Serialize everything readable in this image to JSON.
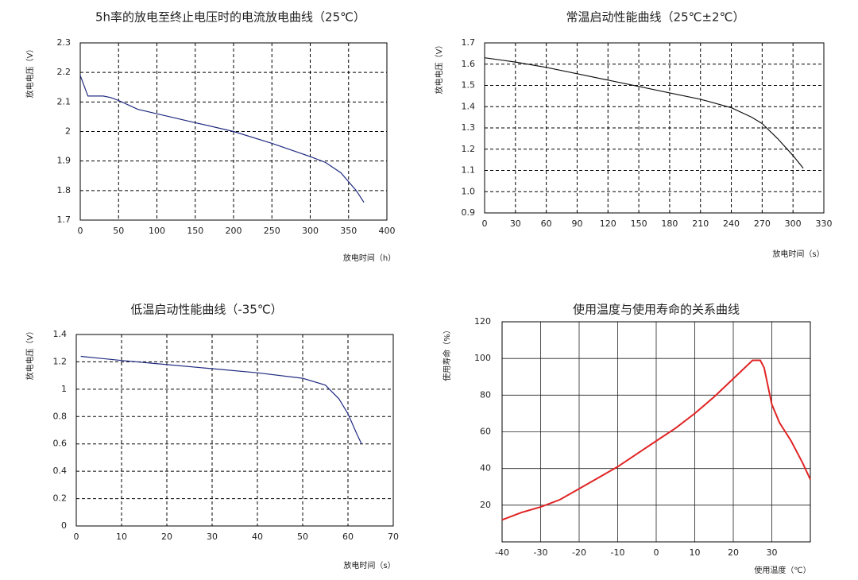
{
  "chart_data": [
    {
      "type": "line",
      "title": "5h率的放电至终止电压时的电流放电曲线（25℃）",
      "x_label": "放电时间（h）",
      "y_label": "放电电压（V）",
      "x": [
        0,
        10,
        20,
        30,
        40,
        50,
        75,
        100,
        150,
        200,
        250,
        300,
        320,
        340,
        360,
        370
      ],
      "values": [
        2.19,
        2.12,
        2.12,
        2.12,
        2.115,
        2.105,
        2.075,
        2.06,
        2.03,
        2.0,
        1.96,
        1.915,
        1.895,
        1.86,
        1.8,
        1.76
      ],
      "color": "#1f2a80",
      "xlim": [
        0,
        400
      ],
      "xticks": [
        0,
        50,
        100,
        150,
        200,
        250,
        300,
        350,
        400
      ],
      "ylim": [
        1.7,
        2.3
      ],
      "yticks": [
        1.7,
        1.8,
        1.9,
        2,
        2.1,
        2.2,
        2.3
      ],
      "grid": "dashed"
    },
    {
      "type": "line",
      "title": "常温启动性能曲线（25℃±2℃）",
      "x_label": "放电时间（s）",
      "y_label": "放电电压（V）",
      "x": [
        0,
        30,
        60,
        90,
        120,
        150,
        180,
        210,
        240,
        260,
        270,
        285,
        300,
        310
      ],
      "values": [
        1.63,
        1.61,
        1.585,
        1.555,
        1.525,
        1.495,
        1.465,
        1.435,
        1.395,
        1.35,
        1.32,
        1.25,
        1.17,
        1.11
      ],
      "color": "#111111",
      "xlim": [
        0,
        330
      ],
      "xticks": [
        0,
        30,
        60,
        90,
        120,
        150,
        180,
        210,
        240,
        270,
        300,
        330
      ],
      "ylim": [
        0.9,
        1.7
      ],
      "yticks": [
        0.9,
        {
          "value": 1,
          "label": "1.0"
        },
        1.1,
        1.2,
        1.3,
        1.4,
        1.5,
        1.6,
        1.7
      ],
      "grid": "dashed"
    },
    {
      "type": "line",
      "title": "低温启动性能曲线（-35℃）",
      "x_label": "放电时间（s）",
      "y_label": "放电电压（V）",
      "x": [
        1,
        10,
        20,
        30,
        40,
        50,
        55,
        58,
        60,
        62,
        63
      ],
      "values": [
        1.24,
        1.21,
        1.18,
        1.15,
        1.12,
        1.08,
        1.03,
        0.93,
        0.82,
        0.67,
        0.6
      ],
      "color": "#1f2a80",
      "xlim": [
        0,
        70
      ],
      "xticks": [
        0,
        10,
        20,
        30,
        40,
        50,
        60,
        70
      ],
      "ylim": [
        0,
        1.4
      ],
      "yticks": [
        0,
        0.2,
        0.4,
        0.6,
        0.8,
        1,
        1.2,
        1.4
      ],
      "grid": "dashed"
    },
    {
      "type": "line",
      "title": "使用温度与使用寿命的关系曲线",
      "x_label": "使用温度（℃）",
      "y_label": "使用寿命（%）",
      "x": [
        -40,
        -35,
        -30,
        -25,
        -20,
        -15,
        -10,
        -5,
        0,
        5,
        10,
        15,
        20,
        25,
        27,
        28,
        30,
        32,
        35,
        38,
        40
      ],
      "values": [
        12,
        16,
        19,
        23,
        29,
        35,
        41,
        48,
        55,
        62,
        70,
        79,
        89,
        99,
        99,
        95,
        75,
        65,
        55,
        43,
        34
      ],
      "color": "#e02424",
      "xlim": [
        -40,
        40
      ],
      "xticks": [
        -40,
        -30,
        -20,
        -10,
        0,
        10,
        20,
        30
      ],
      "ylim": [
        0,
        120
      ],
      "yticks": [
        20,
        40,
        60,
        80,
        100,
        120
      ],
      "grid": "solid"
    }
  ]
}
